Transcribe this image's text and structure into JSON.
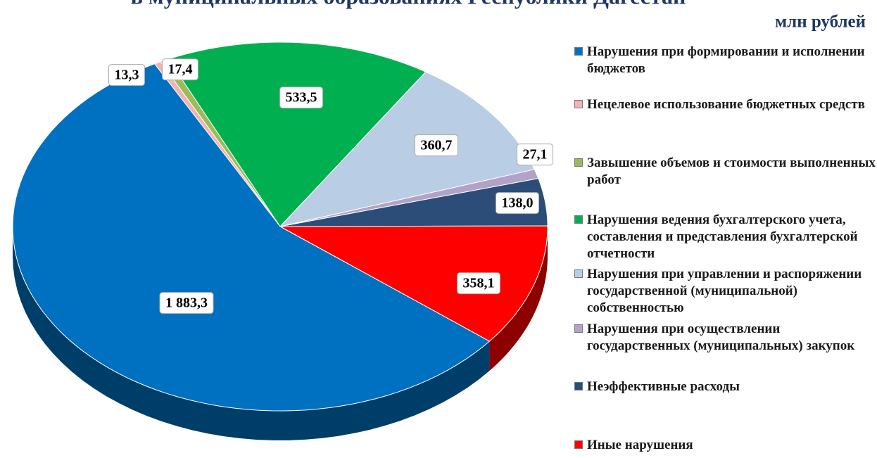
{
  "chart_data": {
    "type": "pie",
    "title": "в муниципальных образованиях Республики Дагестан",
    "unit_label": "млн рублей",
    "categories": [
      "Нарушения при формировании и исполнении бюджетов",
      "Нецелевое использование бюджетных средств",
      "Завышение объемов и стоимости выполненных работ",
      "Нарушения ведения бухгалтерского учета, составления и представления бухгалтерской отчетности",
      "Нарушения при управлении и распоряжении государственной (муниципальной) собственностью",
      "Нарушения при осуществлении государственных (муниципальных) закупок",
      "Неэффективные расходы",
      "Иные нарушения"
    ],
    "values": [
      1883.3,
      13.3,
      17.4,
      533.5,
      360.7,
      27.1,
      138.0,
      358.1
    ],
    "value_labels": [
      "1 883,3",
      "13,3",
      "17,4",
      "533,5",
      "360,7",
      "27,1",
      "138,0",
      "358,1"
    ],
    "colors": [
      "#0070c0",
      "#f2b3b3",
      "#9bbb59",
      "#00b050",
      "#b9cde5",
      "#b3a2c7",
      "#2c4d78",
      "#ff0000"
    ],
    "legend": "right"
  }
}
